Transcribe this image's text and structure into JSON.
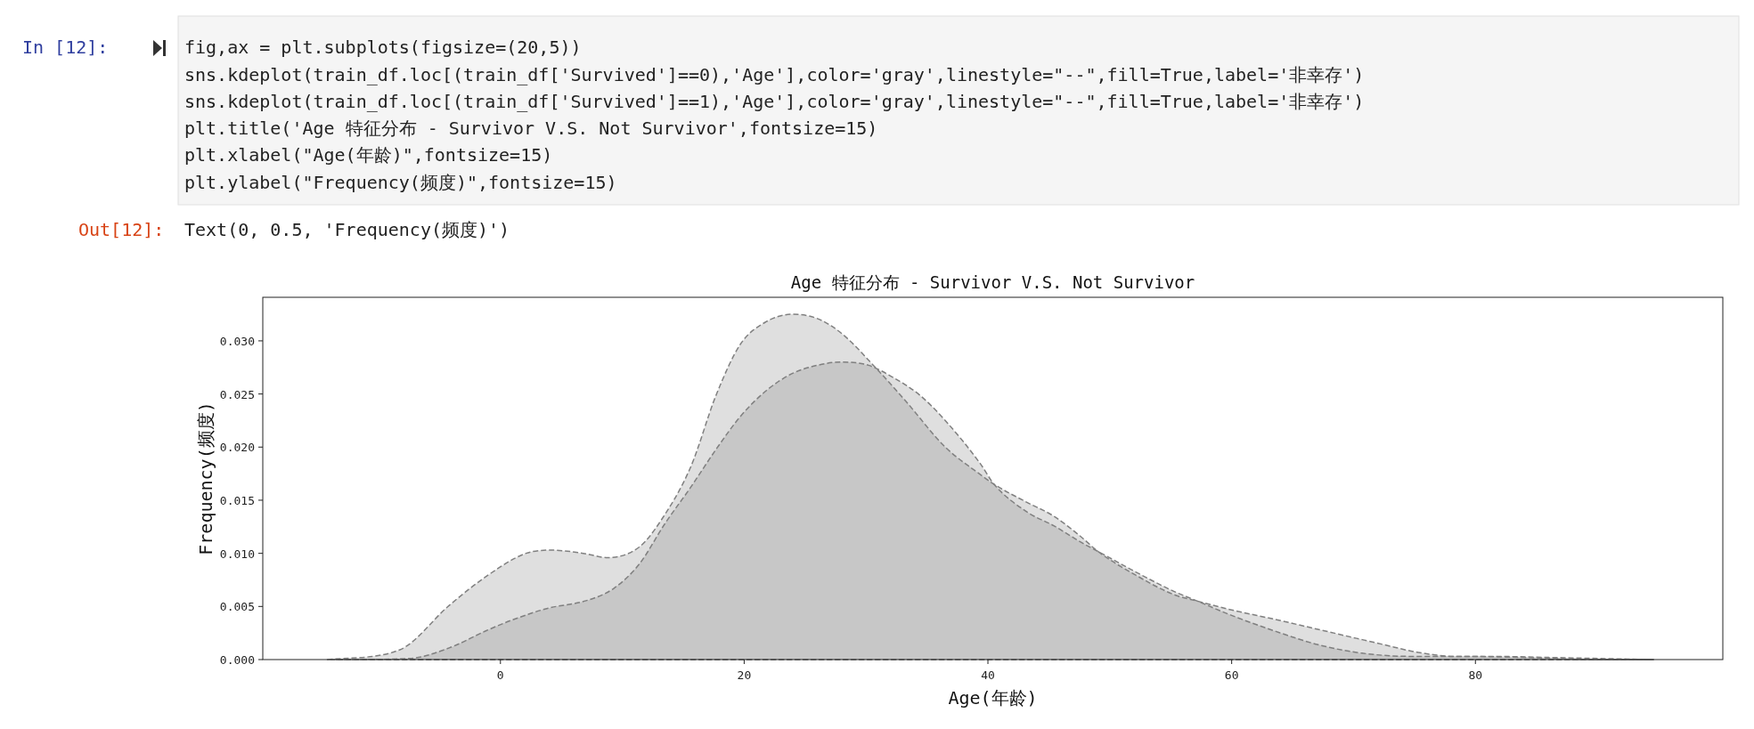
{
  "chart_data": {
    "type": "area",
    "title": "Age 特征分布 - Survivor V.S. Not Survivor",
    "xlabel": "Age(年龄)",
    "ylabel": "Frequency(频度)",
    "xlim": [
      -19.5,
      100.3
    ],
    "ylim": [
      0,
      0.0341
    ],
    "xticks": [
      0,
      20,
      40,
      60,
      80
    ],
    "yticks": [
      {
        "value": 0,
        "label": "0.000"
      },
      {
        "value": 0.005,
        "label": "0.005"
      },
      {
        "value": 0.01,
        "label": "0.010"
      },
      {
        "value": 0.015,
        "label": "0.015"
      },
      {
        "value": 0.02,
        "label": "0.020"
      },
      {
        "value": 0.025,
        "label": "0.025"
      },
      {
        "value": 0.03,
        "label": "0.030"
      }
    ],
    "grid": false,
    "line_style": "dashed",
    "series": [
      {
        "color": "#808080",
        "x": [
          -14.2,
          -8.3,
          -4.2,
          -1.2,
          2.1,
          4.2,
          6.8,
          8.8,
          11.4,
          13.0,
          15.6,
          17.7,
          19.7,
          21.8,
          23.9,
          26.0,
          28.1,
          30.6,
          33.2,
          36.5,
          39.4,
          40.5,
          43.2,
          45.4,
          47.7,
          49.0,
          52.2,
          55.3,
          57.2,
          59.9,
          63.5,
          68.0,
          72.5,
          75.2,
          78.4,
          81.5,
          86.0,
          94.6
        ],
        "values": [
          0,
          0.0009,
          0.0051,
          0.0078,
          0.01,
          0.0103,
          0.01,
          0.0096,
          0.0106,
          0.0128,
          0.0181,
          0.0249,
          0.0297,
          0.0318,
          0.0325,
          0.0321,
          0.0306,
          0.0277,
          0.0244,
          0.02,
          0.0174,
          0.0165,
          0.0148,
          0.0135,
          0.0115,
          0.0102,
          0.0079,
          0.0061,
          0.0055,
          0.0047,
          0.0038,
          0.0026,
          0.0014,
          0.0007,
          0.0003,
          0.0003,
          0.0002,
          0
        ]
      },
      {
        "color": "#7f7f7f",
        "x": [
          -13.5,
          -7.5,
          -4.2,
          -1.2,
          0.9,
          3.8,
          7.2,
          9.3,
          11.4,
          13.5,
          15.6,
          17.7,
          19.7,
          21.8,
          23.9,
          26.0,
          27.9,
          30.2,
          32.3,
          34.4,
          36.5,
          39.4,
          40.5,
          43.2,
          45.4,
          47.7,
          49.0,
          52.2,
          55.3,
          57.2,
          59.9,
          63.5,
          67.1,
          70.7,
          74.8,
          79.3,
          83.8,
          90.6,
          94.6
        ],
        "values": [
          0,
          0.0001,
          0.0011,
          0.0027,
          0.0037,
          0.0048,
          0.0056,
          0.0067,
          0.009,
          0.0128,
          0.0162,
          0.0198,
          0.0229,
          0.0253,
          0.0269,
          0.0277,
          0.028,
          0.0277,
          0.0265,
          0.0249,
          0.0225,
          0.0184,
          0.0165,
          0.0139,
          0.0126,
          0.011,
          0.0102,
          0.0082,
          0.0064,
          0.0055,
          0.0042,
          0.0027,
          0.0014,
          0.0006,
          0.0003,
          0.0003,
          0.0002,
          0,
          0
        ]
      }
    ],
    "annotations": [
      "In [12]:",
      "fig,ax = plt.subplots(figsize=(20,5))",
      "sns.kdeplot(train_df.loc[(train_df['Survived']==0),'Age'],color='gray',linestyle=\"--\",fill=True,label='非幸存')",
      "sns.kdeplot(train_df.loc[(train_df['Survived']==1),'Age'],color='gray',linestyle=\"--\",fill=True,label='非幸存')",
      "plt.title('Age 特征分布 - Survivor V.S. Not Survivor',fontsize=15)",
      "plt.xlabel(\"Age(年龄)\",fontsize=15)",
      "plt.ylabel(\"Frequency(频度)\",fontsize=15)",
      "Out[12]:",
      "Text(0, 0.5, 'Frequency(频度)')"
    ]
  }
}
